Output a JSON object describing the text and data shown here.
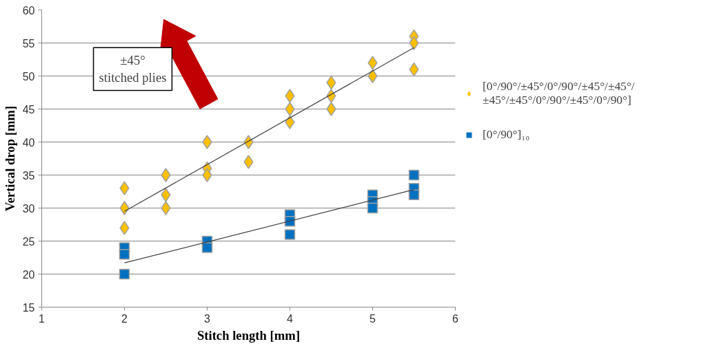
{
  "chart_data": {
    "type": "scatter",
    "xlabel": "Stitch length [mm]",
    "ylabel": "Vertical drop [mm]",
    "xlim": [
      1,
      6
    ],
    "xticks": [
      1,
      2,
      3,
      4,
      5,
      6
    ],
    "ylim": [
      15,
      60
    ],
    "yticks": [
      15,
      20,
      25,
      30,
      35,
      40,
      45,
      50,
      55,
      60
    ],
    "grid": "y",
    "legend": "right",
    "annotations": [
      "±45°\nstitched plies"
    ],
    "series": [
      {
        "name": "[0°/90°/±45°/0°/90°/±45°/±45°/±45°/±45°/0°/90°/±45°/0°/90°]",
        "color": "#ffc000",
        "marker": "diamond",
        "x": [
          2,
          2,
          2,
          2.5,
          2.5,
          2.5,
          3,
          3,
          3,
          3.5,
          3.5,
          4,
          4,
          4,
          4.5,
          4.5,
          4.5,
          5,
          5,
          5.5,
          5.5,
          5.5
        ],
        "values": [
          33,
          30,
          27,
          35,
          32,
          30,
          40,
          36,
          35,
          40,
          37,
          47,
          45,
          43,
          49,
          47,
          45,
          52,
          50,
          56,
          55,
          51
        ]
      },
      {
        "name": "[0°/90°]₁₀",
        "color": "#0070c0",
        "marker": "square",
        "x": [
          2,
          2,
          2,
          3,
          3,
          4,
          4,
          4,
          5,
          5,
          5,
          5.5,
          5.5,
          5.5
        ],
        "values": [
          24,
          23,
          20,
          25,
          24,
          29,
          28,
          26,
          32,
          31,
          30,
          35,
          33,
          32
        ]
      },
      {
        "type": "line",
        "color": "#404040",
        "x": [
          2,
          5.5
        ],
        "values": [
          29.5,
          54.3
        ]
      },
      {
        "type": "line",
        "color": "#404040",
        "x": [
          2,
          5.5
        ],
        "values": [
          21.7,
          32.8
        ]
      }
    ]
  }
}
